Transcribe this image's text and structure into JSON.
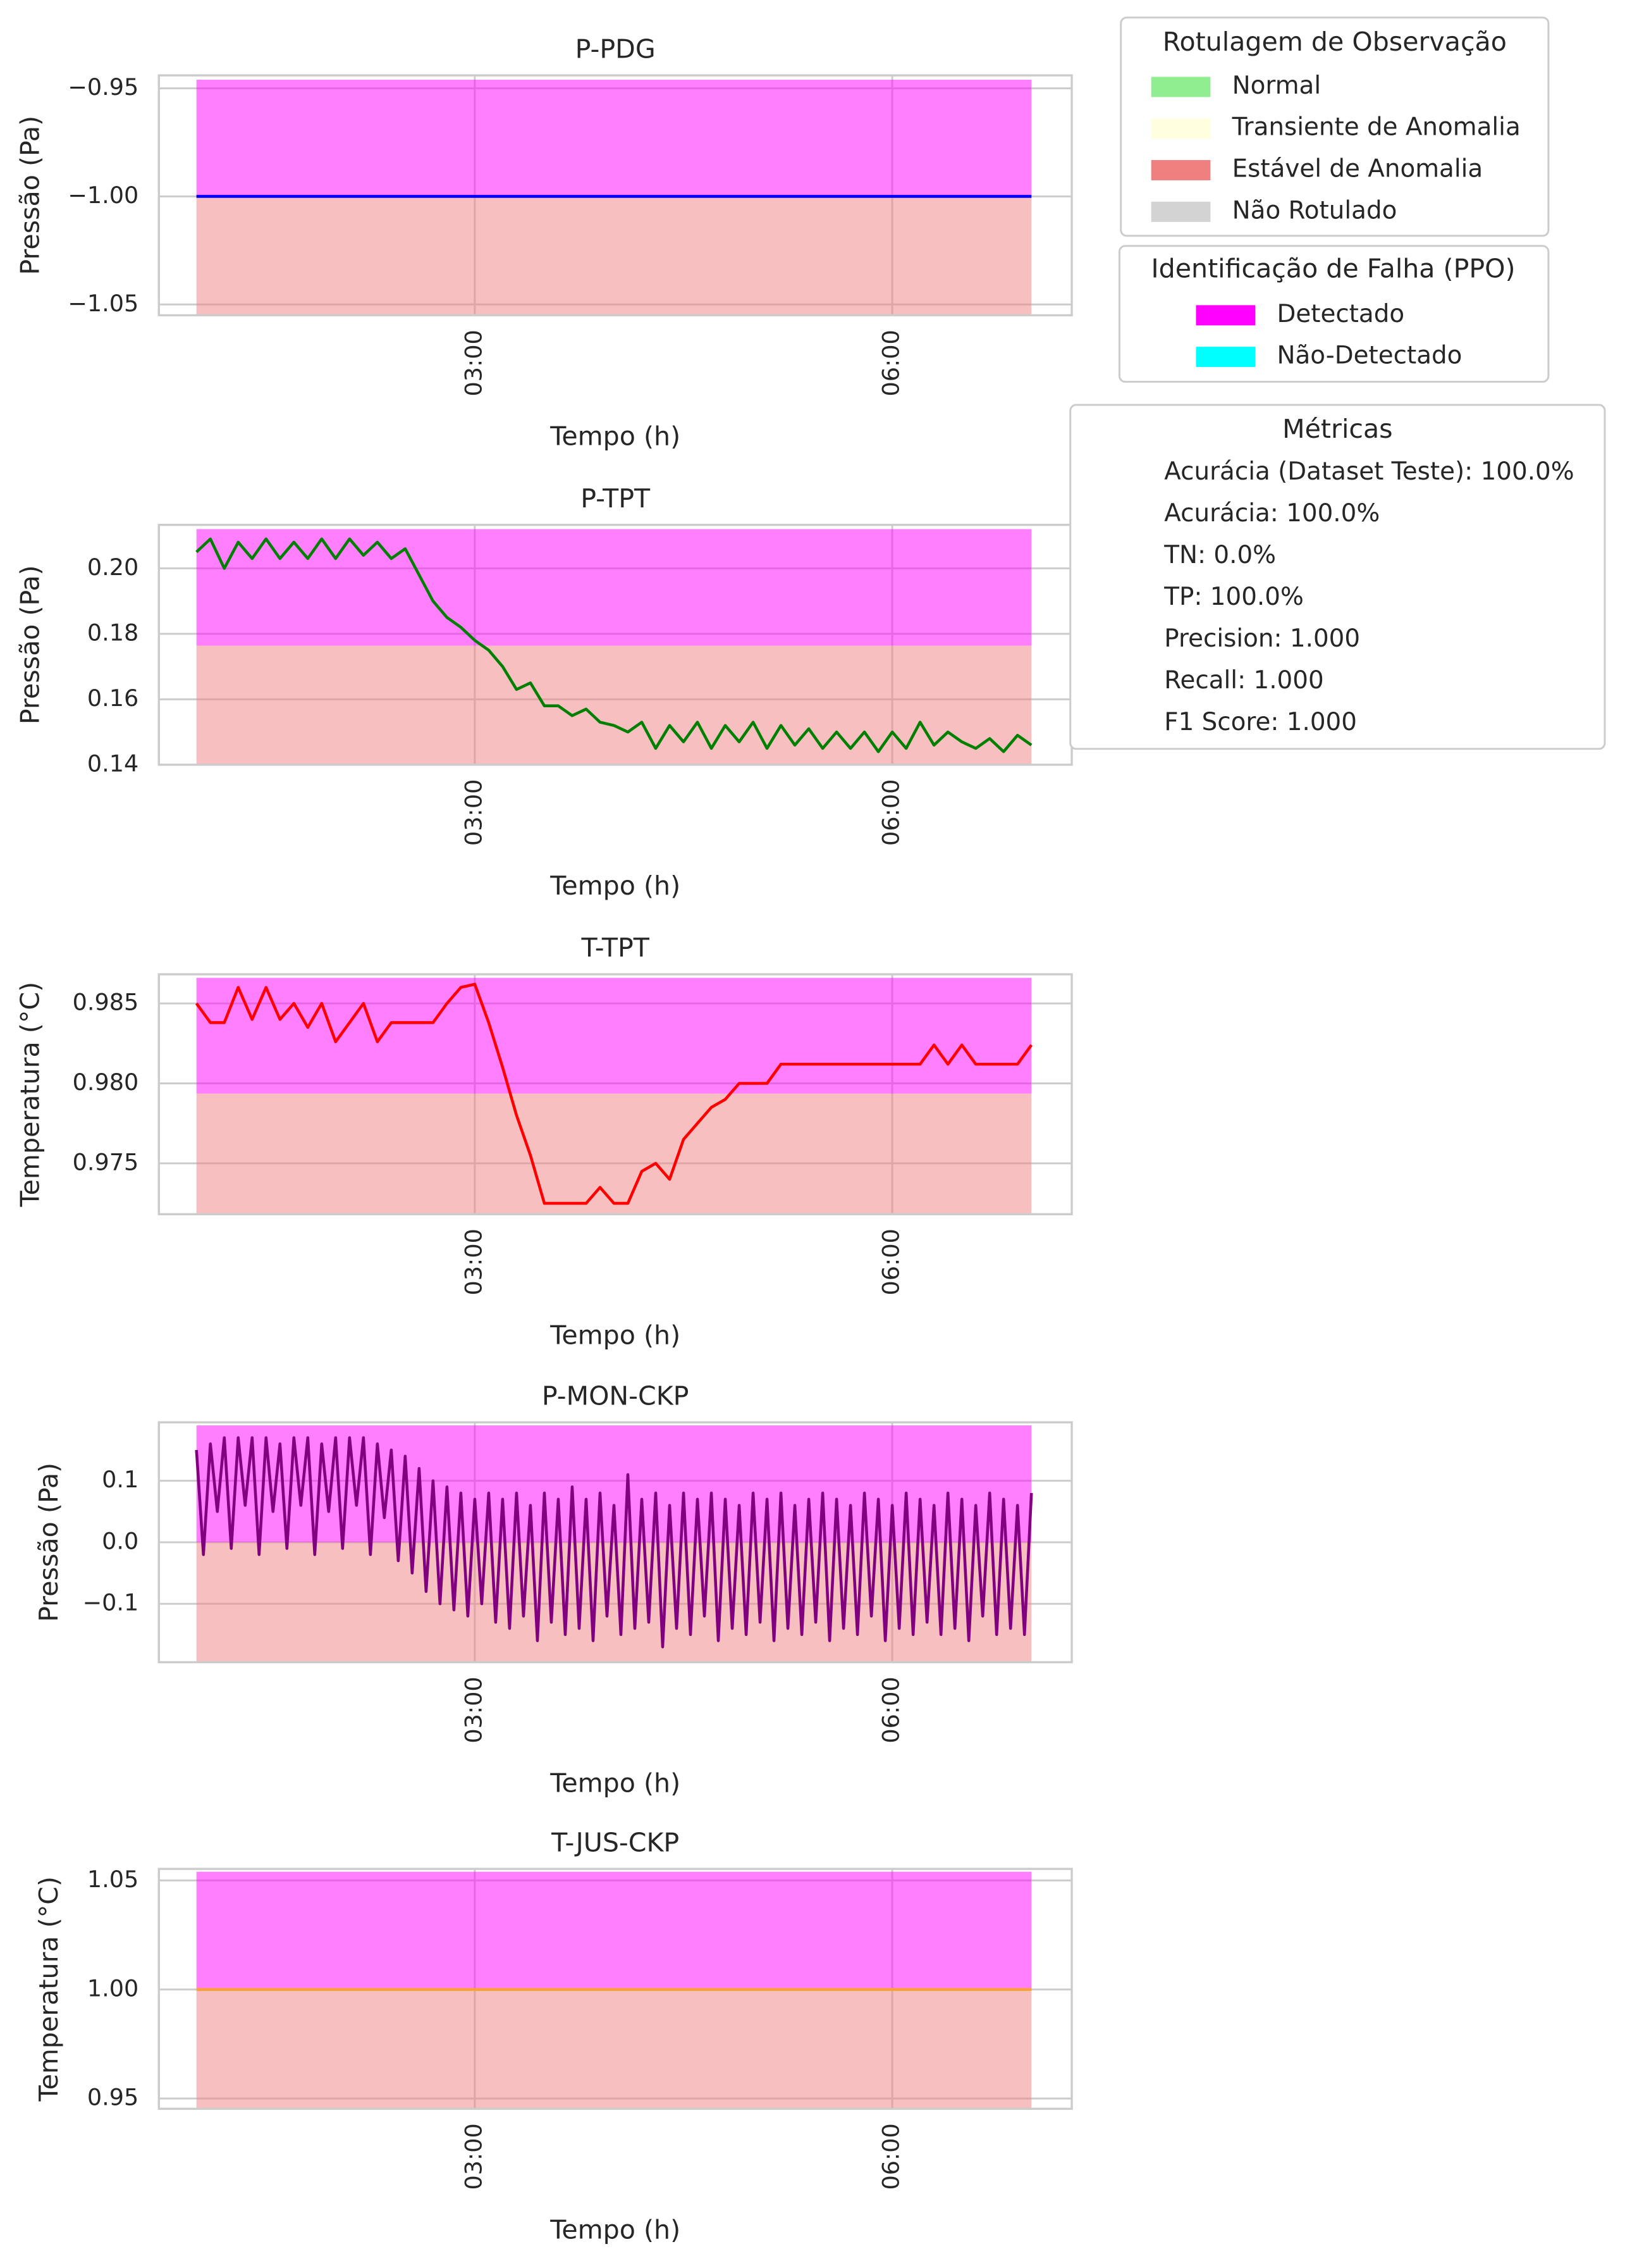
{
  "chart_data": [
    {
      "type": "line",
      "title": "P-PDG",
      "ylabel": "Pressão (Pa)",
      "xlabel": "Tempo (h)",
      "xlim": [
        0.73,
        7.29
      ],
      "xticks": [
        {
          "value": 3,
          "label": "03:00"
        },
        {
          "value": 6,
          "label": "06:00"
        }
      ],
      "ylim": [
        -1.055,
        -0.944
      ],
      "yticks": [
        {
          "value": -0.95,
          "label": "−0.95"
        },
        {
          "value": -1.0,
          "label": "−1.00"
        },
        {
          "value": -1.05,
          "label": "−1.05"
        }
      ],
      "grid": true,
      "region_alpha": 0.5,
      "region_x": [
        1,
        7
      ],
      "regions": [
        {
          "color": "magenta",
          "y": [
            -1.0,
            -0.946
          ]
        },
        {
          "color": "lightcoral",
          "y": [
            -1.055,
            -1.0
          ]
        }
      ],
      "x": [
        1,
        7
      ],
      "series": [
        {
          "color": "blue",
          "values": [
            -1.0,
            -1.0
          ]
        }
      ]
    },
    {
      "type": "line",
      "title": "P-TPT",
      "ylabel": "Pressão (Pa)",
      "xlabel": "Tempo (h)",
      "xlim": [
        0.73,
        7.29
      ],
      "xticks": [
        {
          "value": 3,
          "label": "03:00"
        },
        {
          "value": 6,
          "label": "06:00"
        }
      ],
      "ylim": [
        0.14,
        0.2133
      ],
      "yticks": [
        0.14,
        0.16,
        0.18,
        {
          "value": 0.2,
          "label": "0.20"
        }
      ],
      "grid": true,
      "region_alpha": 0.5,
      "region_x": [
        1,
        7
      ],
      "regions": [
        {
          "color": "magenta",
          "y": [
            0.1764,
            0.212
          ]
        },
        {
          "color": "lightcoral",
          "y": [
            0.14,
            0.1764
          ]
        }
      ],
      "x": [
        1,
        1.1,
        1.2,
        1.3,
        1.4,
        1.5,
        1.6,
        1.7,
        1.8,
        1.9,
        2,
        2.1,
        2.2,
        2.3,
        2.4,
        2.5,
        2.6,
        2.7,
        2.8,
        2.9,
        3,
        3.1,
        3.2,
        3.3,
        3.4,
        3.5,
        3.6,
        3.7,
        3.8,
        3.9,
        4,
        4.1,
        4.2,
        4.3,
        4.4,
        4.5,
        4.6,
        4.7,
        4.8,
        4.9,
        5,
        5.1,
        5.2,
        5.3,
        5.4,
        5.5,
        5.6,
        5.7,
        5.8,
        5.9,
        6,
        6.1,
        6.2,
        6.3,
        6.4,
        6.5,
        6.6,
        6.7,
        6.8,
        6.9,
        7
      ],
      "series": [
        {
          "color": "green",
          "values": [
            0.205,
            0.209,
            0.2,
            0.208,
            0.203,
            0.209,
            0.203,
            0.208,
            0.203,
            0.209,
            0.203,
            0.209,
            0.204,
            0.208,
            0.203,
            0.206,
            0.198,
            0.19,
            0.185,
            0.182,
            0.178,
            0.175,
            0.17,
            0.163,
            0.165,
            0.158,
            0.158,
            0.155,
            0.157,
            0.153,
            0.152,
            0.15,
            0.153,
            0.145,
            0.152,
            0.147,
            0.153,
            0.145,
            0.152,
            0.147,
            0.153,
            0.145,
            0.152,
            0.146,
            0.151,
            0.145,
            0.15,
            0.145,
            0.15,
            0.144,
            0.15,
            0.145,
            0.153,
            0.146,
            0.15,
            0.147,
            0.145,
            0.148,
            0.144,
            0.149,
            0.146
          ]
        }
      ]
    },
    {
      "type": "line",
      "title": "T-TPT",
      "ylabel": "Temperatura (°C)",
      "xlabel": "Tempo (h)",
      "xlim": [
        0.73,
        7.29
      ],
      "xticks": [
        {
          "value": 3,
          "label": "03:00"
        },
        {
          "value": 6,
          "label": "06:00"
        }
      ],
      "ylim": [
        0.97182,
        0.98682
      ],
      "yticks": [
        0.975,
        {
          "value": 0.98,
          "label": "0.980"
        },
        0.985
      ],
      "grid": true,
      "region_alpha": 0.5,
      "region_x": [
        1,
        7
      ],
      "regions": [
        {
          "color": "magenta",
          "y": [
            0.97936,
            0.9866
          ]
        },
        {
          "color": "lightcoral",
          "y": [
            0.97182,
            0.97936
          ]
        }
      ],
      "x": [
        1,
        1.1,
        1.2,
        1.3,
        1.4,
        1.5,
        1.6,
        1.7,
        1.8,
        1.9,
        2,
        2.1,
        2.2,
        2.3,
        2.4,
        2.5,
        2.6,
        2.7,
        2.8,
        2.9,
        3,
        3.1,
        3.2,
        3.3,
        3.4,
        3.5,
        3.6,
        3.7,
        3.8,
        3.9,
        4,
        4.1,
        4.2,
        4.3,
        4.4,
        4.5,
        4.6,
        4.7,
        4.8,
        4.9,
        5,
        5.1,
        5.2,
        5.3,
        5.4,
        5.5,
        5.6,
        5.7,
        5.8,
        5.9,
        6,
        6.1,
        6.2,
        6.3,
        6.4,
        6.5,
        6.6,
        6.7,
        6.8,
        6.9,
        7
      ],
      "series": [
        {
          "color": "red",
          "values": [
            0.985,
            0.9838,
            0.9838,
            0.986,
            0.984,
            0.986,
            0.984,
            0.985,
            0.9835,
            0.985,
            0.9826,
            0.9838,
            0.985,
            0.9826,
            0.9838,
            0.9838,
            0.9838,
            0.9838,
            0.985,
            0.986,
            0.9862,
            0.9838,
            0.981,
            0.978,
            0.9755,
            0.9725,
            0.9725,
            0.9725,
            0.9725,
            0.9735,
            0.9725,
            0.9725,
            0.9745,
            0.975,
            0.974,
            0.9765,
            0.9775,
            0.9785,
            0.979,
            0.98,
            0.98,
            0.98,
            0.9812,
            0.9812,
            0.9812,
            0.9812,
            0.9812,
            0.9812,
            0.9812,
            0.9812,
            0.9812,
            0.9812,
            0.9812,
            0.9824,
            0.9812,
            0.9824,
            0.9812,
            0.9812,
            0.9812,
            0.9812,
            0.9824
          ]
        }
      ]
    },
    {
      "type": "line",
      "title": "P-MON-CKP",
      "ylabel": "Pressão (Pa)",
      "xlabel": "Tempo (h)",
      "xlim": [
        0.73,
        7.29
      ],
      "xticks": [
        {
          "value": 3,
          "label": "03:00"
        },
        {
          "value": 6,
          "label": "06:00"
        }
      ],
      "ylim": [
        -0.195,
        0.195
      ],
      "yticks": [
        {
          "value": -0.1,
          "label": "−0.1"
        },
        {
          "value": 0.0,
          "label": "0.0"
        },
        0.1
      ],
      "grid": true,
      "region_alpha": 0.5,
      "region_x": [
        1,
        7
      ],
      "regions": [
        {
          "color": "magenta",
          "y": [
            0.0,
            0.19
          ]
        },
        {
          "color": "lightcoral",
          "y": [
            -0.195,
            0.0
          ]
        }
      ],
      "x": [
        1,
        1.05,
        1.1,
        1.15,
        1.2,
        1.25,
        1.3,
        1.35,
        1.4,
        1.45,
        1.5,
        1.55,
        1.6,
        1.65,
        1.7,
        1.75,
        1.8,
        1.85,
        1.9,
        1.95,
        2,
        2.05,
        2.1,
        2.15,
        2.2,
        2.25,
        2.3,
        2.35,
        2.4,
        2.45,
        2.5,
        2.55,
        2.6,
        2.65,
        2.7,
        2.75,
        2.8,
        2.85,
        2.9,
        2.95,
        3,
        3.05,
        3.1,
        3.15,
        3.2,
        3.25,
        3.3,
        3.35,
        3.4,
        3.45,
        3.5,
        3.55,
        3.6,
        3.65,
        3.7,
        3.75,
        3.8,
        3.85,
        3.9,
        3.95,
        4,
        4.05,
        4.1,
        4.15,
        4.2,
        4.25,
        4.3,
        4.35,
        4.4,
        4.45,
        4.5,
        4.55,
        4.6,
        4.65,
        4.7,
        4.75,
        4.8,
        4.85,
        4.9,
        4.95,
        5,
        5.05,
        5.1,
        5.15,
        5.2,
        5.25,
        5.3,
        5.35,
        5.4,
        5.45,
        5.5,
        5.55,
        5.6,
        5.65,
        5.7,
        5.75,
        5.8,
        5.85,
        5.9,
        5.95,
        6,
        6.05,
        6.1,
        6.15,
        6.2,
        6.25,
        6.3,
        6.35,
        6.4,
        6.45,
        6.5,
        6.55,
        6.6,
        6.65,
        6.7,
        6.75,
        6.8,
        6.85,
        6.9,
        6.95,
        7
      ],
      "series": [
        {
          "color": "purple",
          "values": [
            0.15,
            -0.02,
            0.16,
            0.05,
            0.17,
            -0.01,
            0.17,
            0.06,
            0.17,
            -0.02,
            0.17,
            0.05,
            0.16,
            -0.01,
            0.17,
            0.06,
            0.17,
            -0.02,
            0.16,
            0.05,
            0.17,
            -0.01,
            0.17,
            0.06,
            0.17,
            -0.02,
            0.16,
            0.04,
            0.15,
            -0.03,
            0.14,
            -0.05,
            0.12,
            -0.08,
            0.1,
            -0.1,
            0.09,
            -0.11,
            0.08,
            -0.12,
            0.07,
            -0.1,
            0.08,
            -0.13,
            0.07,
            -0.14,
            0.08,
            -0.12,
            0.06,
            -0.16,
            0.08,
            -0.13,
            0.07,
            -0.15,
            0.09,
            -0.14,
            0.07,
            -0.16,
            0.08,
            -0.12,
            0.06,
            -0.15,
            0.11,
            -0.14,
            0.07,
            -0.13,
            0.08,
            -0.17,
            0.06,
            -0.14,
            0.08,
            -0.15,
            0.07,
            -0.12,
            0.08,
            -0.16,
            0.07,
            -0.14,
            0.06,
            -0.15,
            0.08,
            -0.13,
            0.07,
            -0.16,
            0.08,
            -0.14,
            0.06,
            -0.15,
            0.07,
            -0.13,
            0.08,
            -0.16,
            0.07,
            -0.14,
            0.06,
            -0.15,
            0.08,
            -0.12,
            0.07,
            -0.16,
            0.06,
            -0.14,
            0.08,
            -0.15,
            0.07,
            -0.13,
            0.06,
            -0.15,
            0.08,
            -0.14,
            0.07,
            -0.16,
            0.06,
            -0.12,
            0.08,
            -0.15,
            0.07,
            -0.14,
            0.06,
            -0.15,
            0.08
          ]
        }
      ]
    },
    {
      "type": "line",
      "title": "T-JUS-CKP",
      "ylabel": "Temperatura (°C)",
      "xlabel": "Tempo (h)",
      "xlim": [
        0.73,
        7.29
      ],
      "xticks": [
        {
          "value": 3,
          "label": "03:00"
        },
        {
          "value": 6,
          "label": "06:00"
        }
      ],
      "ylim": [
        0.9453,
        1.0553
      ],
      "yticks": [
        0.95,
        {
          "value": 1.0,
          "label": "1.00"
        },
        1.05
      ],
      "grid": true,
      "region_alpha": 0.5,
      "region_x": [
        1,
        7
      ],
      "regions": [
        {
          "color": "magenta",
          "y": [
            1.0,
            1.054
          ]
        },
        {
          "color": "lightcoral",
          "y": [
            0.9453,
            1.0
          ]
        }
      ],
      "x": [
        1,
        7
      ],
      "series": [
        {
          "color": "#ffa033",
          "values": [
            1.0,
            1.0
          ]
        }
      ]
    }
  ],
  "legends": [
    {
      "title": "Rotulagem de Observação",
      "entries": [
        {
          "label": "Normal",
          "color": "#90ee90"
        },
        {
          "label": "Transiente de Anomalia",
          "color": "#ffffe0"
        },
        {
          "label": "Estável de Anomalia",
          "color": "#f08080"
        },
        {
          "label": "Não Rotulado",
          "color": "#d3d3d3"
        }
      ]
    },
    {
      "title": "Identificação de Falha (PPO)",
      "entries": [
        {
          "label": "Detectado",
          "color": "#ff00ff"
        },
        {
          "label": "Não-Detectado",
          "color": "#00ffff"
        }
      ]
    }
  ],
  "metrics": {
    "title": "Métricas",
    "lines": [
      "Acurácia (Dataset Teste): 100.0%",
      "Acurácia: 100.0%",
      "TN: 0.0%",
      "TP: 100.0%",
      "Precision: 1.000",
      "Recall: 1.000",
      "F1 Score: 1.000"
    ]
  }
}
